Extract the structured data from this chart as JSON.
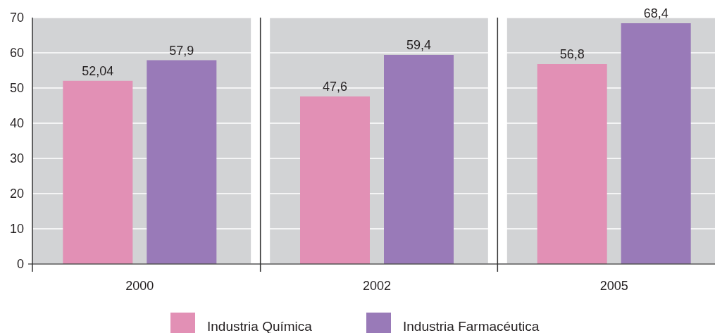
{
  "chart_data": {
    "type": "bar",
    "categories": [
      "2000",
      "2002",
      "2005"
    ],
    "series": [
      {
        "name": "Industria Química",
        "color": "#e290b5",
        "values": [
          52.04,
          47.6,
          56.8
        ],
        "value_labels": [
          "52,04",
          "47,6",
          "56,8"
        ]
      },
      {
        "name": "Industria Farmacéutica",
        "color": "#997ab8",
        "values": [
          57.9,
          59.4,
          68.4
        ],
        "value_labels": [
          "57,9",
          "59,4",
          "68,4"
        ]
      }
    ],
    "ylim": [
      0,
      70
    ],
    "yticks": [
      0,
      10,
      20,
      30,
      40,
      50,
      60,
      70
    ],
    "grid": "y",
    "legend": "bottom"
  }
}
